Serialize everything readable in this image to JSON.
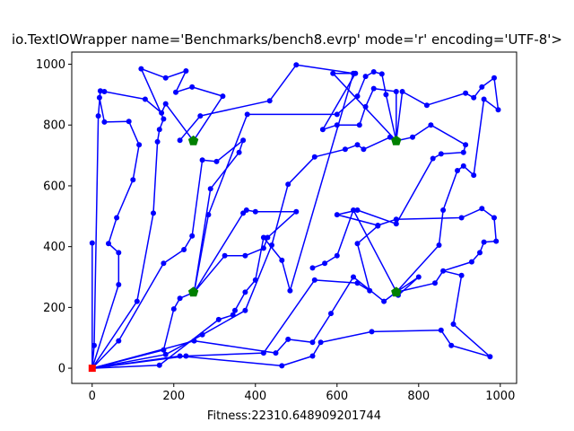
{
  "chart_data": {
    "type": "line",
    "title": "io.TextIOWrapper name='Benchmarks/bench8.evrp' mode='r' encoding='UTF-8'>",
    "xlabel": "Fitness:22310.648909201744",
    "ylabel": "",
    "xlim": [
      -50,
      1040
    ],
    "ylim": [
      -50,
      1040
    ],
    "xticks": [
      0,
      200,
      400,
      600,
      800,
      1000
    ],
    "yticks": [
      0,
      200,
      400,
      600,
      800,
      1000
    ],
    "grid": false,
    "route_color": "#0000ff",
    "depot_color": "#ff0000",
    "station_color": "#008000",
    "depot": {
      "x": 0,
      "y": 0
    },
    "stations": [
      {
        "x": 248,
        "y": 748
      },
      {
        "x": 745,
        "y": 748
      },
      {
        "x": 248,
        "y": 250
      },
      {
        "x": 745,
        "y": 250
      }
    ],
    "routes": [
      [
        [
          0,
          0
        ],
        [
          0,
          412
        ],
        [
          0,
          0
        ]
      ],
      [
        [
          0,
          0
        ],
        [
          5,
          75
        ],
        [
          15,
          830
        ],
        [
          20,
          912
        ],
        [
          18,
          890
        ],
        [
          30,
          810
        ],
        [
          90,
          812
        ],
        [
          115,
          735
        ],
        [
          100,
          620
        ],
        [
          60,
          495
        ],
        [
          40,
          410
        ],
        [
          65,
          380
        ],
        [
          65,
          275
        ],
        [
          0,
          0
        ]
      ],
      [
        [
          0,
          0
        ],
        [
          110,
          220
        ],
        [
          150,
          510
        ],
        [
          160,
          745
        ],
        [
          165,
          785
        ],
        [
          175,
          820
        ],
        [
          120,
          985
        ],
        [
          180,
          955
        ],
        [
          230,
          978
        ],
        [
          205,
          908
        ],
        [
          245,
          925
        ],
        [
          320,
          895
        ],
        [
          248,
          748
        ]
      ],
      [
        [
          248,
          748
        ],
        [
          180,
          870
        ],
        [
          170,
          840
        ],
        [
          130,
          885
        ],
        [
          30,
          910
        ]
      ],
      [
        [
          0,
          0
        ],
        [
          65,
          90
        ],
        [
          175,
          345
        ],
        [
          225,
          390
        ],
        [
          245,
          435
        ],
        [
          270,
          685
        ],
        [
          305,
          680
        ],
        [
          370,
          750
        ],
        [
          360,
          710
        ],
        [
          290,
          590
        ],
        [
          250,
          250
        ]
      ],
      [
        [
          250,
          250
        ],
        [
          285,
          505
        ],
        [
          380,
          835
        ],
        [
          600,
          835
        ],
        [
          650,
          895
        ],
        [
          670,
          960
        ],
        [
          690,
          975
        ],
        [
          710,
          968
        ],
        [
          720,
          900
        ],
        [
          745,
          748
        ]
      ],
      [
        [
          0,
          0
        ],
        [
          175,
          60
        ],
        [
          200,
          195
        ],
        [
          215,
          230
        ],
        [
          250,
          250
        ],
        [
          325,
          370
        ],
        [
          375,
          370
        ],
        [
          420,
          395
        ],
        [
          430,
          430
        ],
        [
          500,
          515
        ],
        [
          400,
          515
        ],
        [
          378,
          520
        ],
        [
          370,
          510
        ],
        [
          250,
          250
        ]
      ],
      [
        [
          0,
          0
        ],
        [
          180,
          45
        ],
        [
          270,
          110
        ],
        [
          375,
          190
        ],
        [
          440,
          405
        ],
        [
          480,
          605
        ],
        [
          545,
          695
        ],
        [
          620,
          720
        ],
        [
          650,
          735
        ],
        [
          665,
          720
        ],
        [
          730,
          760
        ],
        [
          745,
          748
        ]
      ],
      [
        [
          745,
          748
        ],
        [
          785,
          760
        ],
        [
          830,
          800
        ],
        [
          915,
          735
        ],
        [
          910,
          710
        ],
        [
          855,
          705
        ],
        [
          835,
          690
        ],
        [
          745,
          475
        ],
        [
          650,
          520
        ],
        [
          600,
          505
        ],
        [
          700,
          470
        ],
        [
          745,
          490
        ],
        [
          905,
          495
        ],
        [
          955,
          525
        ],
        [
          985,
          495
        ],
        [
          990,
          418
        ],
        [
          960,
          415
        ],
        [
          950,
          380
        ],
        [
          930,
          350
        ],
        [
          860,
          320
        ],
        [
          840,
          280
        ],
        [
          745,
          250
        ]
      ],
      [
        [
          745,
          250
        ],
        [
          715,
          220
        ],
        [
          640,
          300
        ],
        [
          585,
          180
        ],
        [
          540,
          85
        ],
        [
          480,
          95
        ],
        [
          450,
          50
        ],
        [
          250,
          90
        ],
        [
          0,
          0
        ]
      ],
      [
        [
          0,
          0
        ],
        [
          215,
          40
        ],
        [
          465,
          8
        ],
        [
          540,
          40
        ],
        [
          560,
          85
        ],
        [
          685,
          120
        ],
        [
          855,
          125
        ],
        [
          880,
          75
        ],
        [
          975,
          38
        ],
        [
          885,
          145
        ],
        [
          905,
          305
        ],
        [
          860,
          320
        ]
      ],
      [
        [
          0,
          0
        ],
        [
          230,
          40
        ],
        [
          420,
          50
        ],
        [
          545,
          290
        ],
        [
          650,
          280
        ],
        [
          680,
          255
        ],
        [
          650,
          410
        ],
        [
          700,
          468
        ]
      ],
      [
        [
          745,
          250
        ],
        [
          800,
          300
        ],
        [
          750,
          240
        ],
        [
          640,
          520
        ],
        [
          600,
          370
        ],
        [
          570,
          345
        ],
        [
          540,
          330
        ]
      ],
      [
        [
          0,
          0
        ],
        [
          165,
          10
        ],
        [
          310,
          160
        ],
        [
          345,
          175
        ],
        [
          350,
          190
        ],
        [
          375,
          250
        ],
        [
          400,
          290
        ],
        [
          420,
          430
        ],
        [
          465,
          355
        ],
        [
          485,
          255
        ],
        [
          640,
          970
        ],
        [
          500,
          998
        ],
        [
          435,
          880
        ],
        [
          265,
          830
        ],
        [
          215,
          750
        ]
      ],
      [
        [
          745,
          748
        ],
        [
          745,
          910
        ],
        [
          690,
          920
        ],
        [
          670,
          860
        ],
        [
          655,
          800
        ],
        [
          600,
          800
        ],
        [
          565,
          785
        ],
        [
          645,
          970
        ],
        [
          590,
          970
        ],
        [
          745,
          748
        ]
      ],
      [
        [
          745,
          748
        ],
        [
          760,
          910
        ],
        [
          820,
          865
        ],
        [
          915,
          905
        ],
        [
          935,
          890
        ],
        [
          955,
          925
        ],
        [
          985,
          955
        ],
        [
          995,
          850
        ],
        [
          960,
          885
        ],
        [
          935,
          635
        ],
        [
          910,
          665
        ],
        [
          895,
          650
        ],
        [
          860,
          520
        ],
        [
          850,
          405
        ],
        [
          745,
          250
        ]
      ]
    ]
  }
}
